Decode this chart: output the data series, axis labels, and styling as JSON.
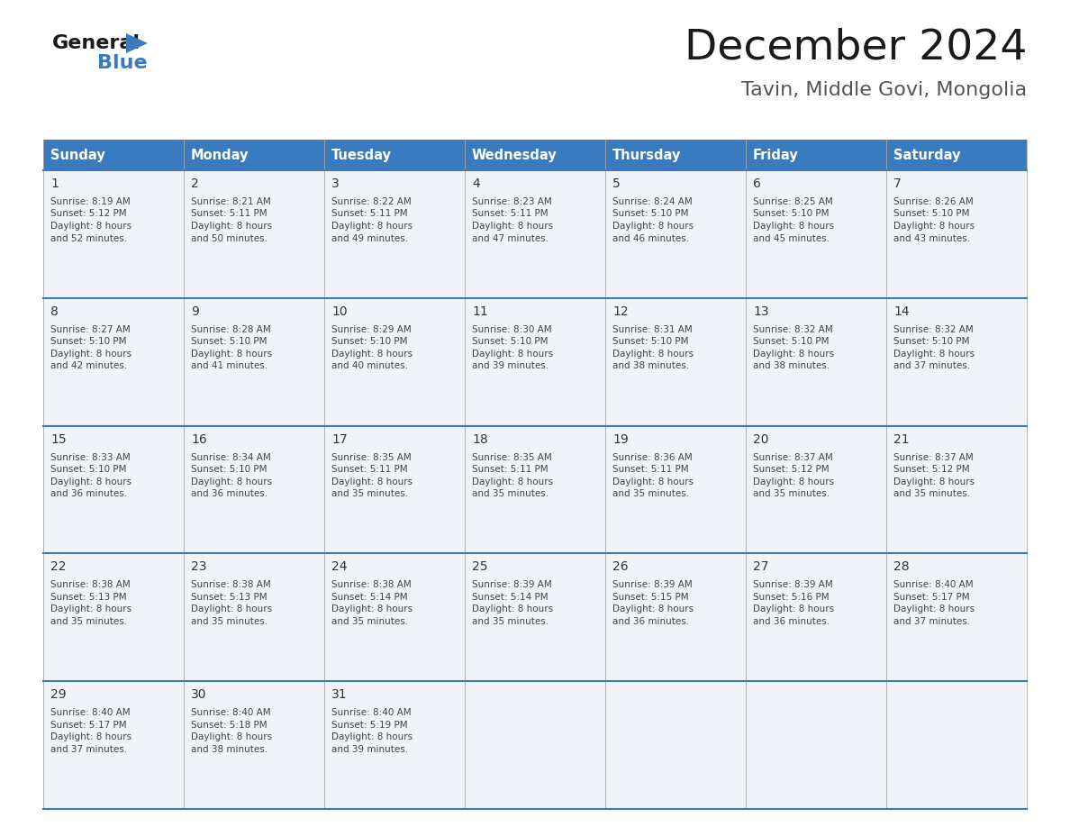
{
  "title": "December 2024",
  "subtitle": "Tavin, Middle Govi, Mongolia",
  "header_color": "#3a7abf",
  "header_text_color": "#ffffff",
  "day_names": [
    "Sunday",
    "Monday",
    "Tuesday",
    "Wednesday",
    "Thursday",
    "Friday",
    "Saturday"
  ],
  "cell_bg_color": "#f0f4f8",
  "cell_bg_color2": "#e8eef4",
  "text_color": "#333333",
  "info_text_color": "#444444",
  "border_color": "#3a7abf",
  "row_divider_color": "#3a7abf",
  "col_line_color": "#cccccc",
  "title_color": "#1a1a1a",
  "subtitle_color": "#555555",
  "logo_general_color": "#1a1a1a",
  "logo_blue_color": "#3a7abf",
  "logo_triangle_color": "#3a7abf",
  "days": [
    {
      "day": 1,
      "col": 0,
      "row": 0,
      "sunrise": "8:19 AM",
      "sunset": "5:12 PM",
      "daylight": "8 hours and 52 minutes."
    },
    {
      "day": 2,
      "col": 1,
      "row": 0,
      "sunrise": "8:21 AM",
      "sunset": "5:11 PM",
      "daylight": "8 hours and 50 minutes."
    },
    {
      "day": 3,
      "col": 2,
      "row": 0,
      "sunrise": "8:22 AM",
      "sunset": "5:11 PM",
      "daylight": "8 hours and 49 minutes."
    },
    {
      "day": 4,
      "col": 3,
      "row": 0,
      "sunrise": "8:23 AM",
      "sunset": "5:11 PM",
      "daylight": "8 hours and 47 minutes."
    },
    {
      "day": 5,
      "col": 4,
      "row": 0,
      "sunrise": "8:24 AM",
      "sunset": "5:10 PM",
      "daylight": "8 hours and 46 minutes."
    },
    {
      "day": 6,
      "col": 5,
      "row": 0,
      "sunrise": "8:25 AM",
      "sunset": "5:10 PM",
      "daylight": "8 hours and 45 minutes."
    },
    {
      "day": 7,
      "col": 6,
      "row": 0,
      "sunrise": "8:26 AM",
      "sunset": "5:10 PM",
      "daylight": "8 hours and 43 minutes."
    },
    {
      "day": 8,
      "col": 0,
      "row": 1,
      "sunrise": "8:27 AM",
      "sunset": "5:10 PM",
      "daylight": "8 hours and 42 minutes."
    },
    {
      "day": 9,
      "col": 1,
      "row": 1,
      "sunrise": "8:28 AM",
      "sunset": "5:10 PM",
      "daylight": "8 hours and 41 minutes."
    },
    {
      "day": 10,
      "col": 2,
      "row": 1,
      "sunrise": "8:29 AM",
      "sunset": "5:10 PM",
      "daylight": "8 hours and 40 minutes."
    },
    {
      "day": 11,
      "col": 3,
      "row": 1,
      "sunrise": "8:30 AM",
      "sunset": "5:10 PM",
      "daylight": "8 hours and 39 minutes."
    },
    {
      "day": 12,
      "col": 4,
      "row": 1,
      "sunrise": "8:31 AM",
      "sunset": "5:10 PM",
      "daylight": "8 hours and 38 minutes."
    },
    {
      "day": 13,
      "col": 5,
      "row": 1,
      "sunrise": "8:32 AM",
      "sunset": "5:10 PM",
      "daylight": "8 hours and 38 minutes."
    },
    {
      "day": 14,
      "col": 6,
      "row": 1,
      "sunrise": "8:32 AM",
      "sunset": "5:10 PM",
      "daylight": "8 hours and 37 minutes."
    },
    {
      "day": 15,
      "col": 0,
      "row": 2,
      "sunrise": "8:33 AM",
      "sunset": "5:10 PM",
      "daylight": "8 hours and 36 minutes."
    },
    {
      "day": 16,
      "col": 1,
      "row": 2,
      "sunrise": "8:34 AM",
      "sunset": "5:10 PM",
      "daylight": "8 hours and 36 minutes."
    },
    {
      "day": 17,
      "col": 2,
      "row": 2,
      "sunrise": "8:35 AM",
      "sunset": "5:11 PM",
      "daylight": "8 hours and 35 minutes."
    },
    {
      "day": 18,
      "col": 3,
      "row": 2,
      "sunrise": "8:35 AM",
      "sunset": "5:11 PM",
      "daylight": "8 hours and 35 minutes."
    },
    {
      "day": 19,
      "col": 4,
      "row": 2,
      "sunrise": "8:36 AM",
      "sunset": "5:11 PM",
      "daylight": "8 hours and 35 minutes."
    },
    {
      "day": 20,
      "col": 5,
      "row": 2,
      "sunrise": "8:37 AM",
      "sunset": "5:12 PM",
      "daylight": "8 hours and 35 minutes."
    },
    {
      "day": 21,
      "col": 6,
      "row": 2,
      "sunrise": "8:37 AM",
      "sunset": "5:12 PM",
      "daylight": "8 hours and 35 minutes."
    },
    {
      "day": 22,
      "col": 0,
      "row": 3,
      "sunrise": "8:38 AM",
      "sunset": "5:13 PM",
      "daylight": "8 hours and 35 minutes."
    },
    {
      "day": 23,
      "col": 1,
      "row": 3,
      "sunrise": "8:38 AM",
      "sunset": "5:13 PM",
      "daylight": "8 hours and 35 minutes."
    },
    {
      "day": 24,
      "col": 2,
      "row": 3,
      "sunrise": "8:38 AM",
      "sunset": "5:14 PM",
      "daylight": "8 hours and 35 minutes."
    },
    {
      "day": 25,
      "col": 3,
      "row": 3,
      "sunrise": "8:39 AM",
      "sunset": "5:14 PM",
      "daylight": "8 hours and 35 minutes."
    },
    {
      "day": 26,
      "col": 4,
      "row": 3,
      "sunrise": "8:39 AM",
      "sunset": "5:15 PM",
      "daylight": "8 hours and 36 minutes."
    },
    {
      "day": 27,
      "col": 5,
      "row": 3,
      "sunrise": "8:39 AM",
      "sunset": "5:16 PM",
      "daylight": "8 hours and 36 minutes."
    },
    {
      "day": 28,
      "col": 6,
      "row": 3,
      "sunrise": "8:40 AM",
      "sunset": "5:17 PM",
      "daylight": "8 hours and 37 minutes."
    },
    {
      "day": 29,
      "col": 0,
      "row": 4,
      "sunrise": "8:40 AM",
      "sunset": "5:17 PM",
      "daylight": "8 hours and 37 minutes."
    },
    {
      "day": 30,
      "col": 1,
      "row": 4,
      "sunrise": "8:40 AM",
      "sunset": "5:18 PM",
      "daylight": "8 hours and 38 minutes."
    },
    {
      "day": 31,
      "col": 2,
      "row": 4,
      "sunrise": "8:40 AM",
      "sunset": "5:19 PM",
      "daylight": "8 hours and 39 minutes."
    }
  ]
}
